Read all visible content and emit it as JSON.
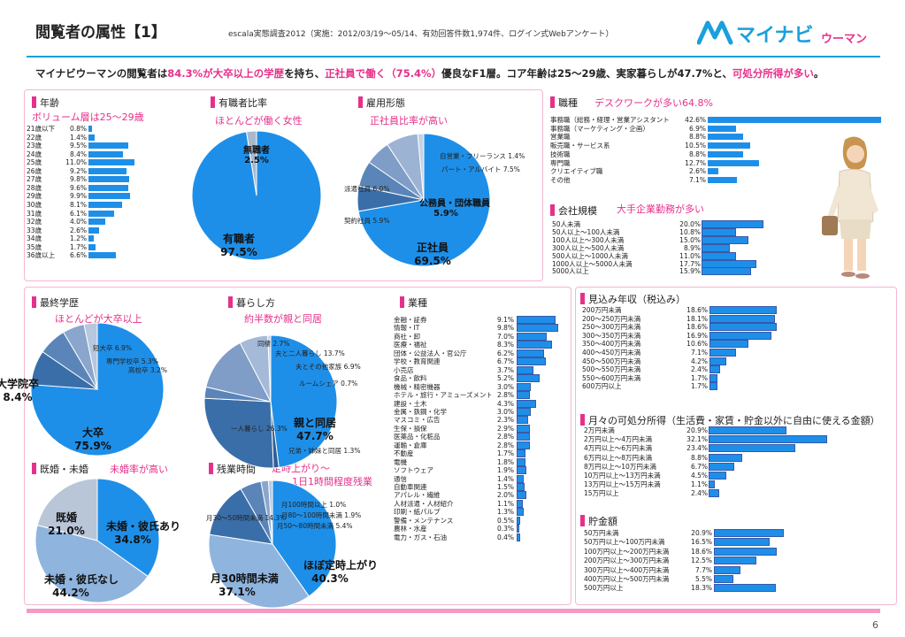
{
  "header": {
    "title": "閲覧者の属性【1】",
    "survey": "escala実態調査2012（実施：2012/03/19〜05/14、有効回答件数1,974件、ログイン式Webアンケート）",
    "logo_text": "マイナビ",
    "logo_sub": "ウーマン"
  },
  "headline": {
    "p1": "マイナビウーマンの閲覧者は",
    "h1": "84.3%が大卒以上の学歴",
    "p2": "を持ち、",
    "h2": "正社員で働く（75.4%）",
    "p3": "優良なF1層。コア年齢は25〜29歳、実家暮らしが47.7%と、",
    "h3": "可処分所得が多い",
    "p4": "。"
  },
  "sections": {
    "age": {
      "title": "年齢",
      "note": "ボリューム層は25〜29歳"
    },
    "work_rate": {
      "title": "有職者比率",
      "note": "ほとんどが働く女性"
    },
    "employment": {
      "title": "雇用形態",
      "note": "正社員比率が高い"
    },
    "job": {
      "title": "職種",
      "note": "デスクワークが多い64.8%"
    },
    "company": {
      "title": "会社規模",
      "note": "大手企業勤務が多い"
    },
    "education": {
      "title": "最終学歴",
      "note": "ほとんどが大卒以上"
    },
    "living": {
      "title": "暮らし方",
      "note": "約半数が親と同居"
    },
    "industry": {
      "title": "業種"
    },
    "income": {
      "title": "見込み年収（税込み）"
    },
    "disposable": {
      "title": "月々の可処分所得（生活費・家賃・貯金以外に自由に使える金額）"
    },
    "savings": {
      "title": "貯金額"
    },
    "marriage": {
      "title": "既婚・未婚",
      "note": "未婚率が高い"
    },
    "overtime": {
      "title": "残業時間",
      "note": "定時上がり〜",
      "note2": "1日1時間程度残業"
    }
  },
  "page_number": "6",
  "chart_data": [
    {
      "id": "age",
      "type": "bar",
      "title": "年齢",
      "categories": [
        "21歳以下",
        "22歳",
        "23歳",
        "24歳",
        "25歳",
        "26歳",
        "27歳",
        "28歳",
        "29歳",
        "30歳",
        "31歳",
        "32歳",
        "33歳",
        "34歳",
        "35歳",
        "36歳以上"
      ],
      "labels": [
        "0.8%",
        "1.4%",
        "9.5%",
        "8.4%",
        "11.0%",
        "9.2%",
        "9.8%",
        "9.6%",
        "9.9%",
        "8.1%",
        "6.1%",
        "4.0%",
        "2.6%",
        "1.2%",
        "1.7%",
        "6.6%"
      ],
      "values": [
        0.8,
        1.4,
        9.5,
        8.4,
        11.0,
        9.2,
        9.8,
        9.6,
        9.9,
        8.1,
        6.1,
        4.0,
        2.6,
        1.2,
        1.7,
        6.6
      ]
    },
    {
      "id": "work_rate",
      "type": "pie",
      "title": "有職者比率",
      "slices": [
        {
          "label": "有職者",
          "value": 97.5,
          "text": "97.5%",
          "color": "#1e8fe8"
        },
        {
          "label": "無職者",
          "value": 2.5,
          "text": "2.5%",
          "color": "#aab8cc"
        }
      ]
    },
    {
      "id": "employment",
      "type": "pie",
      "title": "雇用形態",
      "slices": [
        {
          "label": "正社員",
          "value": 69.5,
          "text": "69.5%",
          "color": "#1e8fe8"
        },
        {
          "label": "契約社員",
          "value": 5.9,
          "text": "5.9%",
          "color": "#3a6ea8"
        },
        {
          "label": "派遣社員",
          "value": 6.0,
          "text": "6.0%",
          "color": "#5b85b8"
        },
        {
          "label": "公務員・団体職員",
          "value": 5.9,
          "text": "5.9%",
          "color": "#7f9dc6"
        },
        {
          "label": "パート・アルバイト",
          "value": 7.5,
          "text": "7.5%",
          "color": "#9cb3d4"
        },
        {
          "label": "自営業・フリーランス",
          "value": 1.4,
          "text": "1.4%",
          "color": "#c5d2e4"
        }
      ]
    },
    {
      "id": "job",
      "type": "bar",
      "title": "職種",
      "categories": [
        "事務職（総務・経理・営業アシスタント）",
        "事務職（マーケティング・企画）",
        "営業職",
        "販売職・サービス系",
        "技術職",
        "専門職",
        "クリエイティブ職",
        "その他"
      ],
      "labels": [
        "42.6%",
        "6.9%",
        "8.8%",
        "10.5%",
        "8.8%",
        "12.7%",
        "2.6%",
        "7.1%"
      ],
      "values": [
        42.6,
        6.9,
        8.8,
        10.5,
        8.8,
        12.7,
        2.6,
        7.1
      ]
    },
    {
      "id": "company",
      "type": "bar",
      "title": "会社規模",
      "categories": [
        "50人未満",
        "50人以上〜100人未満",
        "100人以上〜300人未満",
        "300人以上〜500人未満",
        "500人以上〜1000人未満",
        "1000人以上〜5000人未満",
        "5000人以上"
      ],
      "labels": [
        "20.0%",
        "10.8%",
        "15.0%",
        "8.9%",
        "11.0%",
        "17.7%",
        "15.9%"
      ],
      "values": [
        20.0,
        10.8,
        15.0,
        8.9,
        11.0,
        17.7,
        15.9
      ]
    },
    {
      "id": "education",
      "type": "pie",
      "title": "最終学歴",
      "slices": [
        {
          "label": "大卒",
          "value": 75.9,
          "text": "75.9%",
          "color": "#1e8fe8"
        },
        {
          "label": "大学院卒",
          "value": 8.4,
          "text": "8.4%",
          "color": "#3a6ea8"
        },
        {
          "label": "短大卒",
          "value": 6.9,
          "text": "6.9%",
          "color": "#5b85b8"
        },
        {
          "label": "専門学校卒",
          "value": 5.3,
          "text": "5.3%",
          "color": "#8aa6cc"
        },
        {
          "label": "高校卒",
          "value": 3.2,
          "text": "3.2%",
          "color": "#b7c7de"
        }
      ]
    },
    {
      "id": "living",
      "type": "pie",
      "title": "暮らし方",
      "slices": [
        {
          "label": "親と同居",
          "value": 47.7,
          "text": "47.7%",
          "color": "#1e8fe8"
        },
        {
          "label": "兄弟・姉妹と同居",
          "value": 1.3,
          "text": "1.3%",
          "color": "#2f5f95"
        },
        {
          "label": "一人暮らし",
          "value": 26.3,
          "text": "26.3%",
          "color": "#3a6ea8"
        },
        {
          "label": "同棲",
          "value": 2.7,
          "text": "2.7%",
          "color": "#5b85b8"
        },
        {
          "label": "夫と二人暮らし",
          "value": 13.7,
          "text": "13.7%",
          "color": "#7f9dc6"
        },
        {
          "label": "夫とその他家族",
          "value": 6.9,
          "text": "6.9%",
          "color": "#a5bad8"
        },
        {
          "label": "ルームシェア",
          "value": 0.7,
          "text": "0.7%",
          "color": "#c5d2e4"
        }
      ]
    },
    {
      "id": "industry",
      "type": "bar",
      "title": "業種",
      "categories": [
        "金融・証券",
        "情報・IT",
        "商社・卸",
        "医療・福祉",
        "団体・公益法人・官公庁",
        "学校・教育関連",
        "小売店",
        "食品・飲料",
        "機械・精密機器",
        "ホテル・旅行・アミューズメント",
        "建設・土木",
        "金属・鉄鋼・化学",
        "マスコミ・広告",
        "生保・損保",
        "医薬品・化粧品",
        "運輸・倉庫",
        "不動産",
        "電機",
        "ソフトウェア",
        "通信",
        "自動車関連",
        "アパレル・繊維",
        "人材派遣・人材紹介",
        "印刷・紙パルプ",
        "警備・メンテナンス",
        "農林・水産",
        "電力・ガス・石油"
      ],
      "labels": [
        "9.1%",
        "9.8%",
        "7.0%",
        "8.3%",
        "6.2%",
        "6.7%",
        "3.7%",
        "5.2%",
        "3.0%",
        "2.8%",
        "4.3%",
        "3.0%",
        "2.3%",
        "2.9%",
        "2.8%",
        "2.8%",
        "1.7%",
        "1.8%",
        "1.9%",
        "1.4%",
        "1.5%",
        "2.0%",
        "1.1%",
        "1.3%",
        "0.5%",
        "0.3%",
        "0.4%"
      ],
      "values": [
        9.1,
        9.8,
        7.0,
        8.3,
        6.2,
        6.7,
        3.7,
        5.2,
        3.0,
        2.8,
        4.3,
        3.0,
        2.3,
        2.9,
        2.8,
        2.8,
        1.7,
        1.8,
        1.9,
        1.4,
        1.5,
        2.0,
        1.1,
        1.3,
        0.5,
        0.3,
        0.4
      ]
    },
    {
      "id": "income",
      "type": "bar",
      "title": "見込み年収（税込み）",
      "categories": [
        "200万円未満",
        "200〜250万円未満",
        "250〜300万円未満",
        "300〜350万円未満",
        "350〜400万円未満",
        "400〜450万円未満",
        "450〜500万円未満",
        "500〜550万円未満",
        "550〜600万円未満",
        "600万円以上"
      ],
      "labels": [
        "18.6%",
        "18.1%",
        "18.6%",
        "16.9%",
        "10.6%",
        "7.1%",
        "4.2%",
        "2.4%",
        "1.7%",
        "1.7%"
      ],
      "values": [
        18.6,
        18.1,
        18.6,
        16.9,
        10.6,
        7.1,
        4.2,
        2.4,
        1.7,
        1.7
      ]
    },
    {
      "id": "disposable",
      "type": "bar",
      "title": "月々の可処分所得",
      "categories": [
        "2万円未満",
        "2万円以上〜4万円未満",
        "4万円以上〜6万円未満",
        "6万円以上〜8万円未満",
        "8万円以上〜10万円未満",
        "10万円以上〜13万円未満",
        "13万円以上〜15万円未満",
        "15万円以上"
      ],
      "labels": [
        "20.9%",
        "32.1%",
        "23.4%",
        "8.8%",
        "6.7%",
        "4.5%",
        "1.1%",
        "2.4%"
      ],
      "values": [
        20.9,
        32.1,
        23.4,
        8.8,
        6.7,
        4.5,
        1.1,
        2.4
      ]
    },
    {
      "id": "savings",
      "type": "bar",
      "title": "貯金額",
      "categories": [
        "50万円未満",
        "50万円以上〜100万円未満",
        "100万円以上〜200万円未満",
        "200万円以上〜300万円未満",
        "300万円以上〜400万円未満",
        "400万円以上〜500万円未満",
        "500万円以上"
      ],
      "labels": [
        "20.9%",
        "16.5%",
        "18.6%",
        "12.5%",
        "7.7%",
        "5.5%",
        "18.3%"
      ],
      "values": [
        20.9,
        16.5,
        18.6,
        12.5,
        7.7,
        5.5,
        18.3
      ]
    },
    {
      "id": "marriage",
      "type": "pie",
      "title": "既婚・未婚",
      "slices": [
        {
          "label": "未婚・彼氏あり",
          "value": 34.8,
          "text": "34.8%",
          "color": "#1e8fe8"
        },
        {
          "label": "未婚・彼氏なし",
          "value": 44.2,
          "text": "44.2%",
          "color": "#8fb4de"
        },
        {
          "label": "既婚",
          "value": 21.0,
          "text": "21.0%",
          "color": "#b9c6d8"
        }
      ]
    },
    {
      "id": "overtime",
      "type": "pie",
      "title": "残業時間",
      "slices": [
        {
          "label": "ほぼ定時上がり",
          "value": 40.3,
          "text": "40.3%",
          "color": "#1e8fe8"
        },
        {
          "label": "月30時間未満",
          "value": 37.1,
          "text": "37.1%",
          "color": "#8fb4de"
        },
        {
          "label": "月30〜50時間未満",
          "value": 14.3,
          "text": "14.3%",
          "color": "#3a6ea8"
        },
        {
          "label": "月50〜80時間未満",
          "value": 5.4,
          "text": "5.4%",
          "color": "#5b85b8"
        },
        {
          "label": "月80〜100時間未満",
          "value": 1.9,
          "text": "1.9%",
          "color": "#8aa6cc"
        },
        {
          "label": "月100時間以上",
          "value": 1.0,
          "text": "1.0%",
          "color": "#b7c7de"
        }
      ]
    }
  ]
}
